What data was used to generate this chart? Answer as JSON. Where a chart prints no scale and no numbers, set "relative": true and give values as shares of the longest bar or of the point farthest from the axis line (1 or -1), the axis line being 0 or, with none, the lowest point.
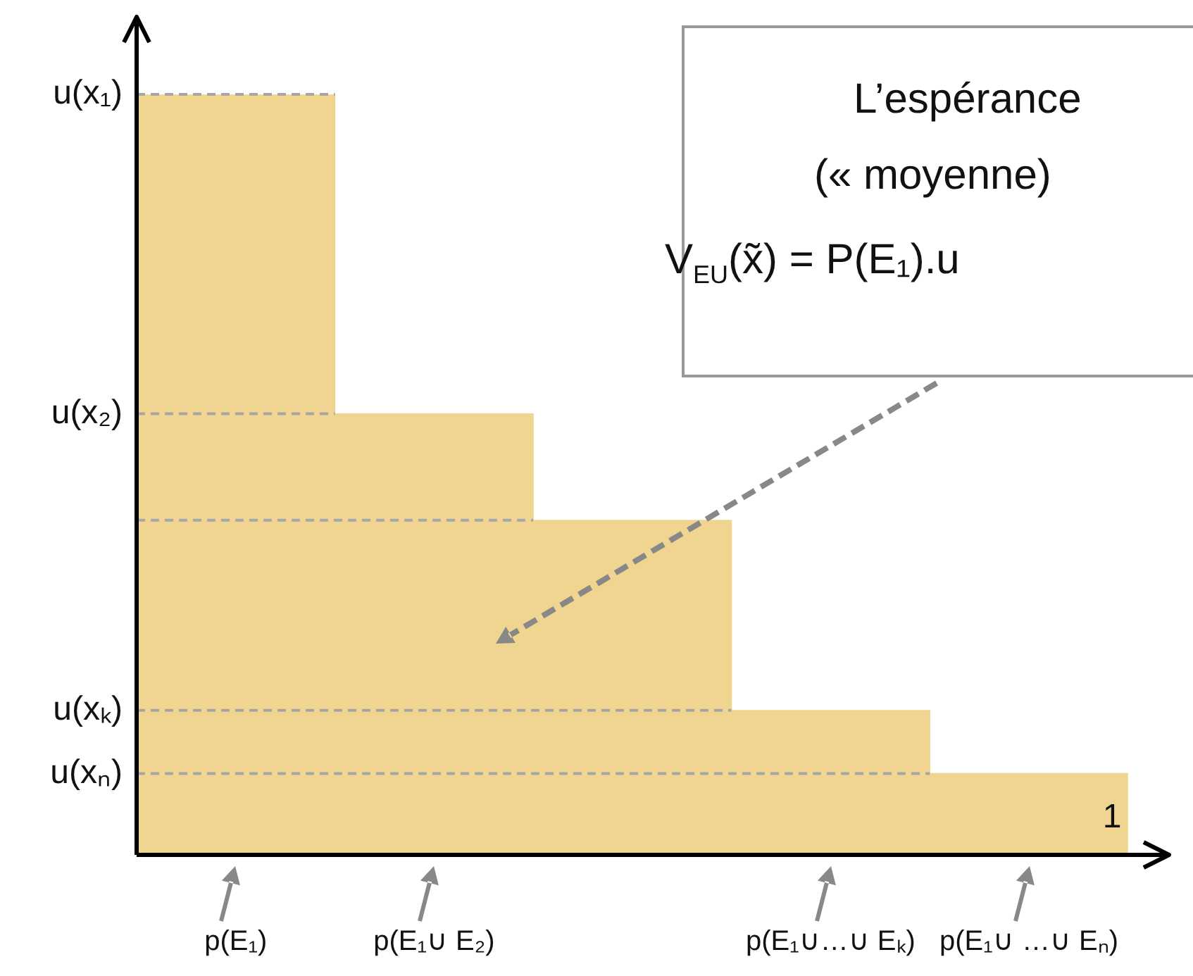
{
  "chart_data": {
    "type": "bar",
    "relative": true,
    "legend": false,
    "categories": [
      "p(E₁)",
      "p(E₁∪ E₂)",
      null,
      "p(E₁∪…∪ Eₖ)",
      "p(E₁∪ …∪ Eₙ)"
    ],
    "series": [
      {
        "color": "#f0d590",
        "values": [
          1,
          0.58,
          0.44,
          0.19,
          0.107
        ]
      }
    ],
    "ref_lines": [
      {
        "axis": "y",
        "value": 1,
        "color": "#a6a6a6",
        "line_style": "dashed",
        "label": "u(x₁)"
      },
      {
        "axis": "y",
        "value": 0.58,
        "color": "#a6a6a6",
        "line_style": "dashed",
        "label": "u(x₂)"
      },
      {
        "axis": "y",
        "value": 0.44,
        "color": "#a6a6a6",
        "line_style": "dashed"
      },
      {
        "axis": "y",
        "value": 0.19,
        "color": "#a6a6a6",
        "line_style": "dashed",
        "label": "u(xₖ)"
      },
      {
        "axis": "y",
        "value": 0.107,
        "color": "#a6a6a6",
        "line_style": "dashed",
        "label": "u(xₙ)"
      }
    ],
    "annotations": [
      "L’espérance",
      "(« moyenne)",
      "V$_{EU}$(x̃) = P(E₁).u",
      "1"
    ]
  }
}
